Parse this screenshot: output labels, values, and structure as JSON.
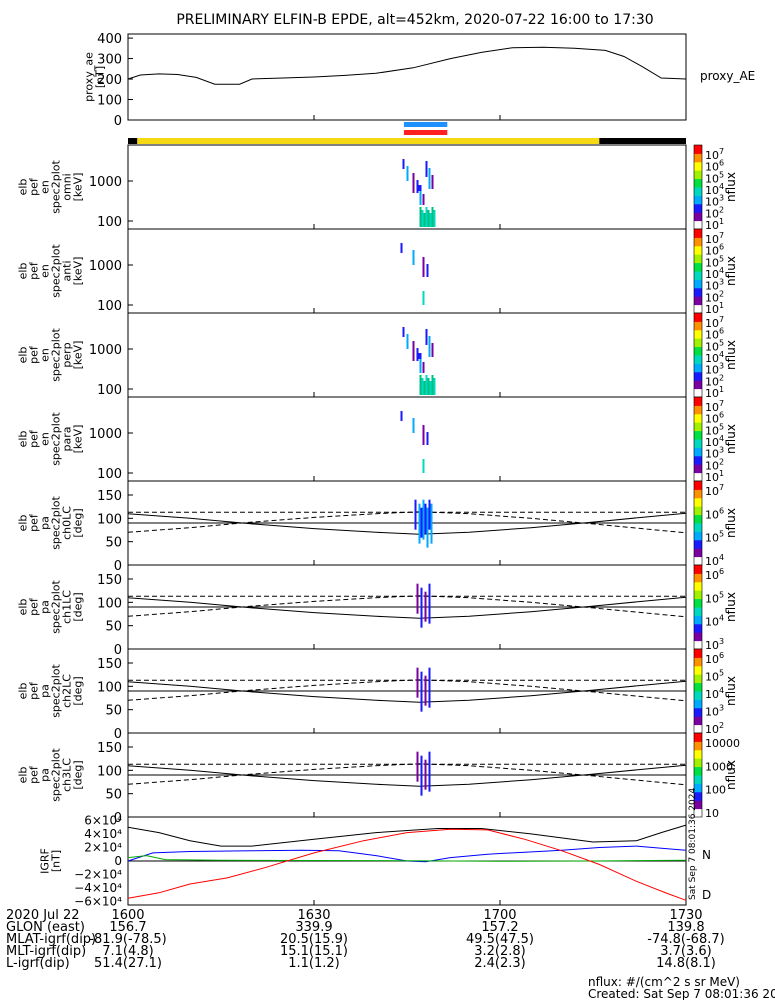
{
  "title": "PRELIMINARY ELFIN-B EPDE, alt=452km, 2020-07-22 16:00 to 17:30",
  "time_axis": {
    "start_min": 0,
    "end_min": 90
  },
  "ae_panel": {
    "ylabel": [
      "proxy_ae",
      "[nT]"
    ],
    "side_label": "proxy_AE",
    "ylim": [
      0,
      420
    ],
    "ticks": [
      "400",
      "300",
      "200",
      "100",
      "0"
    ],
    "series": [
      [
        0,
        200
      ],
      [
        2,
        220
      ],
      [
        5,
        225
      ],
      [
        8,
        222
      ],
      [
        11,
        208
      ],
      [
        14,
        175
      ],
      [
        18,
        175
      ],
      [
        20,
        200
      ],
      [
        25,
        205
      ],
      [
        30,
        210
      ],
      [
        35,
        218
      ],
      [
        40,
        228
      ],
      [
        46,
        255
      ],
      [
        52,
        300
      ],
      [
        57,
        330
      ],
      [
        62,
        353
      ],
      [
        67,
        355
      ],
      [
        72,
        350
      ],
      [
        77,
        340
      ],
      [
        80,
        310
      ],
      [
        83,
        260
      ],
      [
        86,
        205
      ],
      [
        90,
        200
      ]
    ]
  },
  "status_bars": {
    "blue_span_min": [
      44.5,
      51.5
    ],
    "red_span_min": [
      44.5,
      51.5
    ],
    "black_span_min": [
      [
        0,
        1.5
      ],
      [
        76,
        90
      ]
    ],
    "yellow_span_min": [
      1.5,
      76
    ]
  },
  "energy_panels": [
    {
      "ylabel": [
        "elb",
        "pef",
        "en",
        "spec2plot",
        "omni",
        "[keV]"
      ],
      "ticks": [
        "1000",
        "100"
      ],
      "cbar_label": "nflux",
      "cbar_ticks": [
        "10^7",
        "10^6",
        "10^5",
        "10^4",
        "10^3",
        "10^2",
        "10^1"
      ]
    },
    {
      "ylabel": [
        "elb",
        "pef",
        "en",
        "spec2plot",
        "anti",
        "[keV]"
      ],
      "ticks": [
        "1000",
        "100"
      ],
      "cbar_label": "nflux",
      "cbar_ticks": [
        "10^7",
        "10^6",
        "10^5",
        "10^4",
        "10^3",
        "10^2",
        "10^1"
      ]
    },
    {
      "ylabel": [
        "elb",
        "pef",
        "en",
        "spec2plot",
        "perp",
        "[keV]"
      ],
      "ticks": [
        "1000",
        "100"
      ],
      "cbar_label": "nflux",
      "cbar_ticks": [
        "10^7",
        "10^6",
        "10^5",
        "10^4",
        "10^3",
        "10^2",
        "10^1"
      ]
    },
    {
      "ylabel": [
        "elb",
        "pef",
        "en",
        "spec2plot",
        "para",
        "[keV]"
      ],
      "ticks": [
        "1000",
        "100"
      ],
      "cbar_label": "nflux",
      "cbar_ticks": [
        "10^7",
        "10^6",
        "10^5",
        "10^4",
        "10^3",
        "10^2",
        "10^1"
      ]
    }
  ],
  "pa_panels": [
    {
      "ylabel": [
        "elb",
        "pef",
        "pa",
        "spec2plot",
        "ch0LC",
        "[deg]"
      ],
      "ticks": [
        "150",
        "100",
        "50",
        "0"
      ],
      "cbar_label": "nflux",
      "cbar_ticks": [
        "10^7",
        "10^6",
        "10^5",
        "10^4"
      ]
    },
    {
      "ylabel": [
        "elb",
        "pef",
        "pa",
        "spec2plot",
        "ch1LC",
        "[deg]"
      ],
      "ticks": [
        "150",
        "100",
        "50",
        "0"
      ],
      "cbar_label": "nflux",
      "cbar_ticks": [
        "10^6",
        "10^5",
        "10^4",
        "10^3"
      ]
    },
    {
      "ylabel": [
        "elb",
        "pef",
        "pa",
        "spec2plot",
        "ch2LC",
        "[deg]"
      ],
      "ticks": [
        "150",
        "100",
        "50",
        "0"
      ],
      "cbar_label": "nflux",
      "cbar_ticks": [
        "10^6",
        "10^5",
        "10^4",
        "10^3",
        "10^2"
      ]
    },
    {
      "ylabel": [
        "elb",
        "pef",
        "pa",
        "spec2plot",
        "ch3LC",
        "[deg]"
      ],
      "ticks": [
        "150",
        "100",
        "50",
        "0"
      ],
      "cbar_label": "nflux",
      "cbar_ticks": [
        "10000",
        "1000",
        "100",
        "10"
      ]
    }
  ],
  "pa_curves": {
    "dashed_level_deg": 113,
    "solid_level_deg": 90,
    "loss_cone": [
      [
        0,
        110
      ],
      [
        10,
        100
      ],
      [
        20,
        88
      ],
      [
        30,
        78
      ],
      [
        40,
        70
      ],
      [
        47,
        66
      ],
      [
        55,
        70
      ],
      [
        65,
        80
      ],
      [
        75,
        92
      ],
      [
        82,
        101
      ],
      [
        90,
        111
      ]
    ],
    "anti_loss_cone": [
      [
        0,
        70
      ],
      [
        10,
        80
      ],
      [
        20,
        92
      ],
      [
        30,
        102
      ],
      [
        40,
        110
      ],
      [
        47,
        114
      ],
      [
        55,
        110
      ],
      [
        65,
        100
      ],
      [
        75,
        88
      ],
      [
        82,
        79
      ],
      [
        90,
        69
      ]
    ]
  },
  "igrf_panel": {
    "ylabel": [
      "IGRF",
      "[nT]"
    ],
    "ylim": [
      -65000,
      65000
    ],
    "ticks": [
      "6×10⁴",
      "4×10⁴",
      "2×10⁴",
      "0",
      "−2×10⁴",
      "−4×10⁴",
      "−6×10⁴"
    ],
    "tick_values": [
      60000,
      40000,
      20000,
      0,
      -20000,
      -40000,
      -60000
    ],
    "labels": {
      "n": "N",
      "d": "D"
    },
    "series": [
      {
        "color": "#000000",
        "points": [
          [
            0,
            50000
          ],
          [
            5,
            42000
          ],
          [
            10,
            30000
          ],
          [
            15,
            22000
          ],
          [
            20,
            22000
          ],
          [
            30,
            32000
          ],
          [
            40,
            42000
          ],
          [
            50,
            48000
          ],
          [
            57,
            48000
          ],
          [
            65,
            40000
          ],
          [
            75,
            28000
          ],
          [
            82,
            30000
          ],
          [
            86,
            42000
          ],
          [
            90,
            53000
          ]
        ]
      },
      {
        "color": "#0000ff",
        "points": [
          [
            0,
            0
          ],
          [
            4,
            12000
          ],
          [
            10,
            14000
          ],
          [
            20,
            15000
          ],
          [
            28,
            16000
          ],
          [
            34,
            15000
          ],
          [
            40,
            8000
          ],
          [
            45,
            0
          ],
          [
            48,
            -1000
          ],
          [
            52,
            5000
          ],
          [
            58,
            10000
          ],
          [
            64,
            13000
          ],
          [
            70,
            16000
          ],
          [
            76,
            20000
          ],
          [
            82,
            22000
          ],
          [
            87,
            18000
          ],
          [
            90,
            16000
          ]
        ]
      },
      {
        "color": "#00aa00",
        "points": [
          [
            0,
            5000
          ],
          [
            3,
            8000
          ],
          [
            6,
            2000
          ],
          [
            15,
            1000
          ],
          [
            30,
            800
          ],
          [
            45,
            500
          ],
          [
            60,
            -500
          ],
          [
            75,
            0
          ],
          [
            90,
            1000
          ]
        ]
      },
      {
        "color": "#ff0000",
        "points": [
          [
            0,
            -55000
          ],
          [
            5,
            -47000
          ],
          [
            10,
            -34000
          ],
          [
            16,
            -25000
          ],
          [
            22,
            -10000
          ],
          [
            30,
            12000
          ],
          [
            38,
            30000
          ],
          [
            45,
            42000
          ],
          [
            52,
            47000
          ],
          [
            58,
            46000
          ],
          [
            64,
            32000
          ],
          [
            70,
            15000
          ],
          [
            76,
            -5000
          ],
          [
            82,
            -30000
          ],
          [
            87,
            -48000
          ],
          [
            90,
            -58000
          ]
        ]
      }
    ]
  },
  "x_tick_labels": [
    "1600",
    "1630",
    "1700",
    "1730"
  ],
  "x_tick_min": [
    0,
    30,
    60,
    90
  ],
  "ephemeris": [
    {
      "label": "2020 Jul 22",
      "values": [
        "1600",
        "1630",
        "1700",
        "1730"
      ]
    },
    {
      "label": "GLON (east)",
      "values": [
        "156.7",
        "339.9",
        "157.2",
        "139.8"
      ]
    },
    {
      "label": "MLAT-igrf(dip)",
      "values": [
        "-81.9(-78.5)",
        "20.5(15.9)",
        "49.5(47.5)",
        "-74.8(-68.7)"
      ]
    },
    {
      "label": "MLT-igrf(dip)",
      "values": [
        "7.1(4.8)",
        "15.1(15.1)",
        "3.2(2.8)",
        "3.7(3.6)"
      ]
    },
    {
      "label": "L-igrf(dip)",
      "values": [
        "51.4(27.1)",
        "1.1(1.2)",
        "2.4(2.3)",
        "14.8(8.1)"
      ]
    }
  ],
  "footer": {
    "units": "nflux: #/(cm^2 s sr MeV)",
    "created": "Created: Sat Sep  7 08:01:36 2024",
    "side_stamp": "Sat Sep  7 08:01:36 2024"
  }
}
